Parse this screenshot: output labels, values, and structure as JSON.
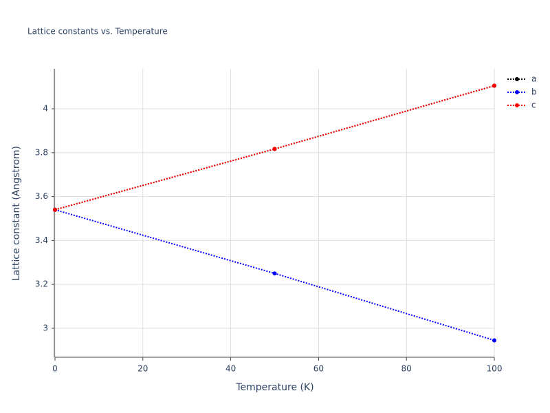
{
  "chart_data": {
    "type": "line",
    "title": "Lattice constants vs. Temperature",
    "x_label": "Temperature (K)",
    "y_label": "Lattice constant (Angstrom)",
    "x": [
      0,
      50,
      100
    ],
    "series": [
      {
        "name": "a",
        "color": "#000000",
        "values": [
          3.54,
          3.817,
          4.105
        ]
      },
      {
        "name": "b",
        "color": "#0000ff",
        "values": [
          3.54,
          3.25,
          2.945
        ]
      },
      {
        "name": "c",
        "color": "#ff0000",
        "values": [
          3.54,
          3.817,
          4.105
        ]
      }
    ],
    "xlim": [
      0,
      100
    ],
    "xticks": [
      0,
      20,
      40,
      60,
      80,
      100
    ],
    "ylim": [
      2.868,
      4.182
    ],
    "yticks": [
      3,
      3.2,
      3.4,
      3.6,
      3.8,
      4
    ],
    "grid": true,
    "legend": "top-right"
  }
}
